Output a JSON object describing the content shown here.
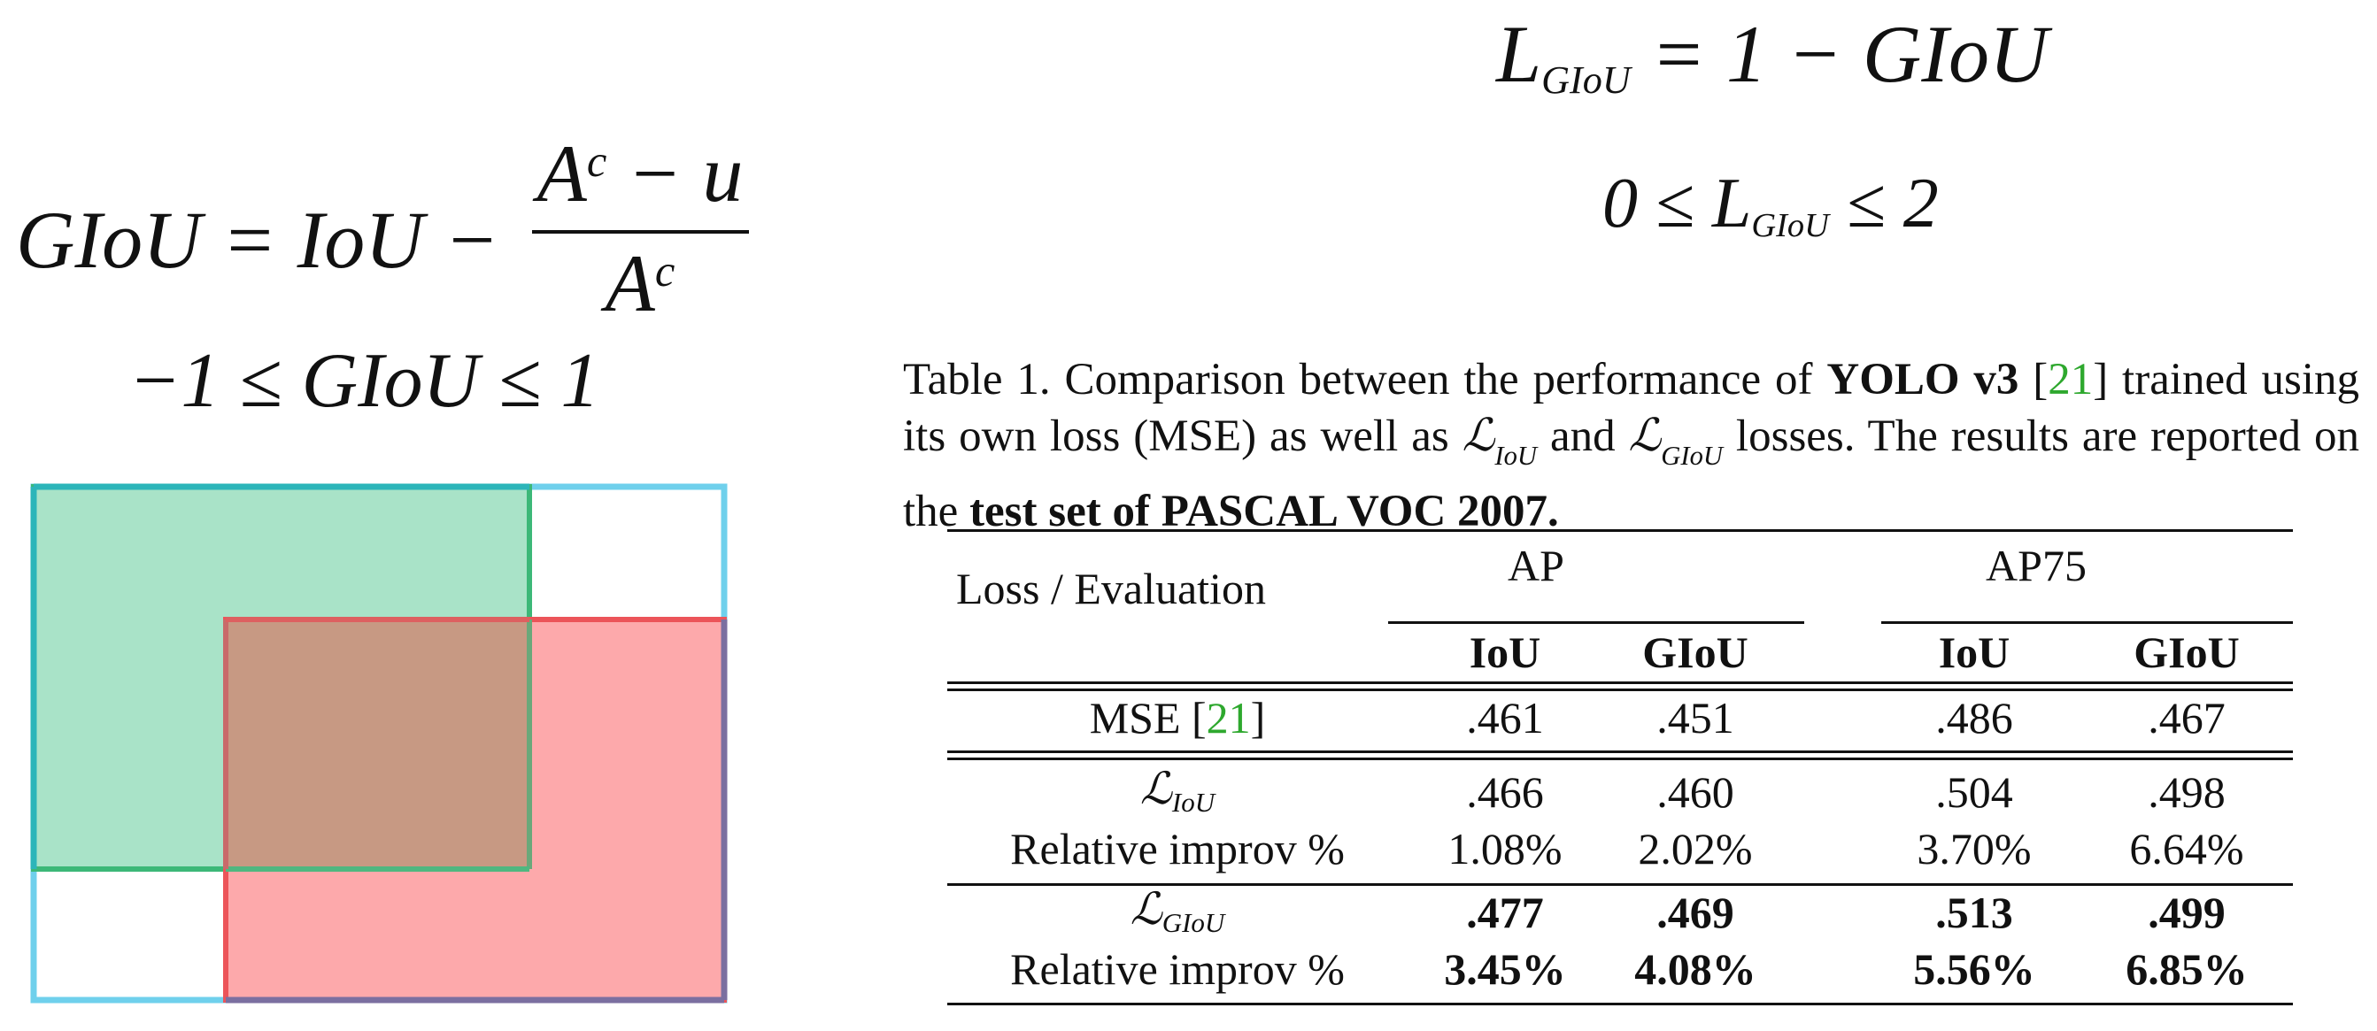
{
  "formulas": {
    "giou": {
      "lhs": "GIoU = IoU −",
      "numerator": "A",
      "numerator_sup": "c",
      "numerator_rest": " − u",
      "denominator": "A",
      "denominator_sup": "c"
    },
    "giou_range": "−1 ≤ GIoU ≤ 1",
    "loss": {
      "L": "L",
      "sub": "GIoU",
      "rest": " = 1 − GIoU"
    },
    "loss_range": {
      "left": "0 ≤ L",
      "sub": "GIoU",
      "right": " ≤ 2"
    }
  },
  "diagram": {
    "colors": {
      "blue_box": "#6fd0ec",
      "green_box": "#a9e3c8",
      "green_stroke": "#3cb878",
      "red_box": "#fda9ab",
      "red_stroke": "#ec5459",
      "overlap": "#c79983",
      "teal_corner": "#2cb5b9",
      "purple_edge": "#7b6fa0"
    }
  },
  "caption": {
    "p1": "Table 1. Comparison between the performance of ",
    "b1": "YOLO v3",
    "r1_open": " [",
    "ref1": "21",
    "r1_close": "] trained using its own loss (MSE) as well as ",
    "liou": "ℒ",
    "liou_sub": "IoU",
    "and": " and ",
    "lgiou": "ℒ",
    "lgiou_sub": "GIoU",
    "p2": " losses. The results are reported on the ",
    "b2": "test set of PASCAL VOC 2007."
  },
  "table": {
    "header": {
      "loss_eval": "Loss / Evaluation",
      "ap": "AP",
      "ap75": "AP75",
      "iou": "IoU",
      "giou": "GIoU"
    },
    "rows": [
      {
        "label": "MSE [",
        "ref": "21",
        "label_end": "]",
        "vals": [
          ".461",
          ".451",
          ".486",
          ".467"
        ]
      },
      {
        "label_script": "ℒ",
        "label_sub": "IoU",
        "vals": [
          ".466",
          ".460",
          ".504",
          ".498"
        ]
      },
      {
        "label": "Relative improv %",
        "vals": [
          "1.08%",
          "2.02%",
          "3.70%",
          "6.64%"
        ]
      },
      {
        "label_script": "ℒ",
        "label_sub": "GIoU",
        "vals": [
          ".477",
          ".469",
          ".513",
          ".499"
        ],
        "bold": true
      },
      {
        "label": "Relative improv %",
        "vals": [
          "3.45%",
          "4.08%",
          "5.56%",
          "6.85%"
        ],
        "bold": true
      }
    ],
    "accent_color": "#2ea82e"
  }
}
